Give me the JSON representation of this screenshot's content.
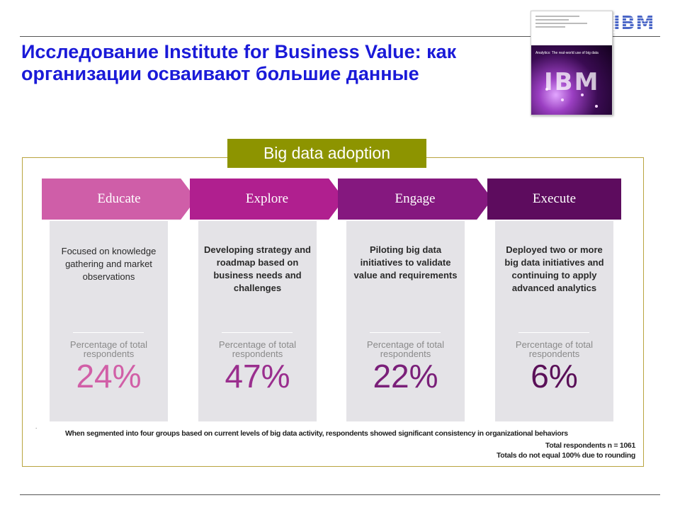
{
  "slide": {
    "title": "Исследование Institute for Business Value: как организации осваивают большие данные",
    "logo": "IBM"
  },
  "report_cover": {
    "title": "Analytics: The real-world use of big data",
    "logo": "IBM"
  },
  "diagram": {
    "label": "Big data adoption",
    "percentage_label": "Percentage of total respondents",
    "stages": [
      {
        "name": "Educate",
        "description": "Focused on knowledge gathering and market observations",
        "percentage": "24%",
        "color": "#cf5ea8",
        "value_color": "#d15fa7"
      },
      {
        "name": "Explore",
        "description": "Developing strategy and roadmap based on business needs and challenges",
        "percentage": "47%",
        "color": "#b01f8f",
        "value_color": "#9a2e8e"
      },
      {
        "name": "Engage",
        "description": "Piloting big data initiatives to validate value and requirements",
        "percentage": "22%",
        "color": "#85187f",
        "value_color": "#7a1f79"
      },
      {
        "name": "Execute",
        "description": "Deployed two or more big data initiatives and continuing to apply advanced analytics",
        "percentage": "6%",
        "color": "#5d0c5e",
        "value_color": "#5a1058"
      }
    ]
  },
  "footnote": {
    "marker": ".",
    "text": "When segmented into four groups based on current levels of big data activity, respondents showed significant consistency in organizational behaviors",
    "total": "Total respondents n = 1061",
    "rounding": "Totals do not equal 100% due to rounding"
  }
}
